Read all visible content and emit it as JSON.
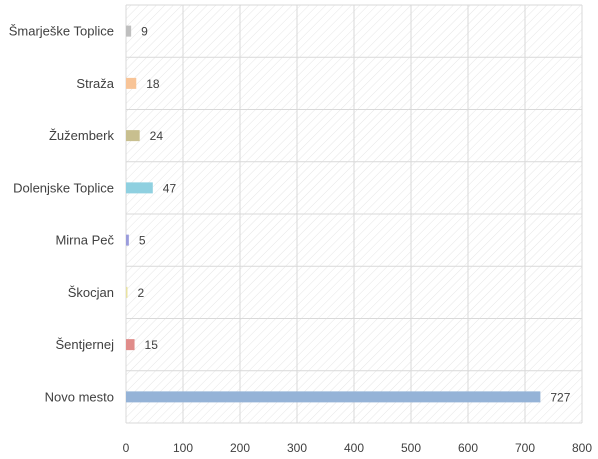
{
  "chart_data": {
    "type": "bar",
    "orientation": "horizontal",
    "categories": [
      "Šmarješke Toplice",
      "Straža",
      "Žužemberk",
      "Dolenjske Toplice",
      "Mirna Peč",
      "Škocjan",
      "Šentjernej",
      "Novo mesto"
    ],
    "values": [
      9,
      18,
      24,
      47,
      5,
      2,
      15,
      727
    ],
    "colors": [
      "#bfbfbf",
      "#f8c497",
      "#c8bf8f",
      "#8fd0e0",
      "#9a9cdc",
      "#e8e2a0",
      "#e08c8a",
      "#95b3d7"
    ],
    "xlim": [
      0,
      800
    ],
    "xticks": [
      "0",
      "100",
      "200",
      "300",
      "400",
      "500",
      "600",
      "700",
      "800"
    ],
    "grid": true,
    "plot_background": "hatched",
    "data_labels": [
      "9",
      "18",
      "24",
      "47",
      "5",
      "2",
      "15",
      "727"
    ]
  }
}
